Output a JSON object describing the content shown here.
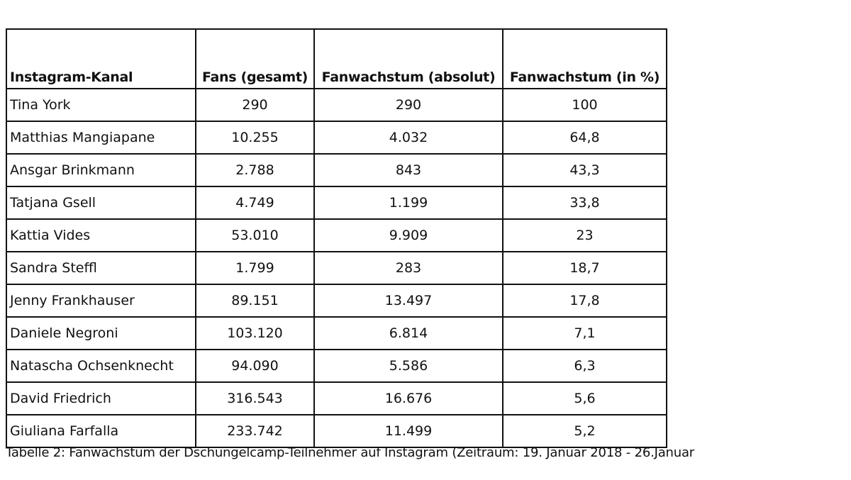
{
  "table": {
    "headers": [
      "Instagram-Kanal",
      "Fans (gesamt)",
      "Fanwachstum (absolut)",
      "Fanwachstum (in %)"
    ],
    "rows": [
      [
        "Tina York",
        "290",
        "290",
        "100"
      ],
      [
        "Matthias Mangiapane",
        "10.255",
        "4.032",
        "64,8"
      ],
      [
        "Ansgar Brinkmann",
        "2.788",
        "843",
        "43,3"
      ],
      [
        "Tatjana Gsell",
        "4.749",
        "1.199",
        "33,8"
      ],
      [
        "Kattia Vides",
        "53.010",
        "9.909",
        "23"
      ],
      [
        "Sandra Steffl",
        "1.799",
        "283",
        "18,7"
      ],
      [
        "Jenny Frankhauser",
        "89.151",
        "13.497",
        "17,8"
      ],
      [
        "Daniele Negroni",
        "103.120",
        "6.814",
        "7,1"
      ],
      [
        "Natascha Ochsenknecht",
        "94.090",
        "5.586",
        "6,3"
      ],
      [
        "David Friedrich",
        "316.543",
        "16.676",
        "5,6"
      ],
      [
        "Giuliana Farfalla",
        "233.742",
        "11.499",
        "5,2"
      ]
    ]
  },
  "caption": "Tabelle 2: Fanwachstum der Dschungelcamp-Teilnehmer auf Instagram (Zeitraum: 19. Januar 2018 - 26.Januar"
}
